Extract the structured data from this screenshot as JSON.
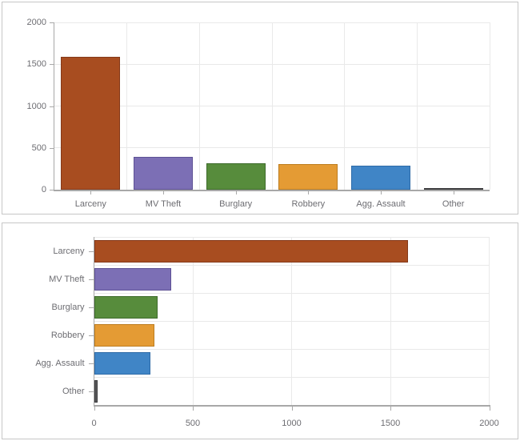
{
  "palette": {
    "grid_color": "#e9e9e9",
    "axis_color": "#a8a8a8",
    "label_color": "#6d6d72",
    "panel_border_color": "#c6c6c6",
    "background": "#ffffff",
    "bar_fills": [
      "#a84d20",
      "#7c6fb5",
      "#578c3c",
      "#e49b34",
      "#4085c6",
      "#58585a"
    ],
    "bar_borders": [
      "#84391a",
      "#5d5194",
      "#3e6b2c",
      "#bd7d1f",
      "#2e6ba8",
      "#3c3c3e"
    ]
  },
  "chart_data": [
    {
      "type": "bar",
      "orientation": "vertical",
      "title": "",
      "xlabel": "",
      "ylabel": "",
      "categories": [
        "Larceny",
        "MV Theft",
        "Burglary",
        "Robbery",
        "Agg. Assault",
        "Other"
      ],
      "values": [
        1590,
        390,
        320,
        305,
        285,
        20
      ],
      "ylim": [
        0,
        2000
      ],
      "yticks": [
        "0",
        "500",
        "1000",
        "1500",
        "2000"
      ],
      "ytick_values": [
        0,
        500,
        1000,
        1500,
        2000
      ],
      "grid": true,
      "legend": false
    },
    {
      "type": "bar",
      "orientation": "horizontal",
      "title": "",
      "xlabel": "",
      "ylabel": "",
      "categories": [
        "Larceny",
        "MV Theft",
        "Burglary",
        "Robbery",
        "Agg. Assault",
        "Other"
      ],
      "values": [
        1590,
        390,
        320,
        305,
        285,
        20
      ],
      "xlim": [
        0,
        2000
      ],
      "xticks": [
        "0",
        "500",
        "1000",
        "1500",
        "2000"
      ],
      "xtick_values": [
        0,
        500,
        1000,
        1500,
        2000
      ],
      "grid": true,
      "legend": false
    }
  ]
}
